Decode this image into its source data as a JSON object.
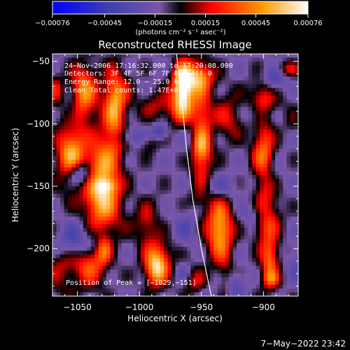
{
  "chart_data": {
    "type": "heatmap",
    "title": "Reconstructed RHESSI Image",
    "xlabel": "Heliocentric X (arcsec)",
    "ylabel": "Heliocentric Y (arcsec)",
    "xlim": [
      -1070,
      -872
    ],
    "ylim": [
      -238,
      -44
    ],
    "x_ticks": [
      -1050,
      -1000,
      -950,
      -900
    ],
    "y_ticks": [
      -50,
      -100,
      -150,
      -200
    ],
    "x_tick_labels": [
      "−1050",
      "−1000",
      "−950",
      "−900"
    ],
    "y_tick_labels": [
      "−50",
      "−100",
      "−150",
      "−200"
    ],
    "colorbar": {
      "ticks": [
        -0.00076,
        -0.00045,
        -0.00015,
        0.00015,
        0.00045,
        0.00076
      ],
      "tick_labels": [
        "−0.00076",
        "−0.00045",
        "−0.00015",
        "0.00015",
        "0.00045",
        "0.00076"
      ],
      "units_label": "(photons cm⁻² s⁻¹ asec⁻²)",
      "range": [
        -0.00076,
        0.00076
      ]
    },
    "annotations": [
      "24−Nov−2006 17:16:32.000 to 17:20:08.000",
      "Detectors: 3F 4F 5F 6F 7F 8F, Att 0",
      "Energy Range: 12.0 − 25.0 keV",
      "Clean     Total counts: 1.47E+04"
    ],
    "position_label": "Position of Peak = [−1029,−151]",
    "limb_curve": [
      [
        -970,
        -44
      ],
      [
        -966,
        -80
      ],
      [
        -962,
        -120
      ],
      [
        -957,
        -160
      ],
      [
        -950,
        -200
      ],
      [
        -942,
        -238
      ]
    ],
    "colors": {
      "colormap": [
        "#0000ff",
        "#3f3fb0",
        "#7a57a8",
        "#000000",
        "#ff0000",
        "#ff9900",
        "#ffffff"
      ],
      "frame": "#ffffff"
    }
  },
  "footer_timestamp": "7−May−2022 23:42"
}
